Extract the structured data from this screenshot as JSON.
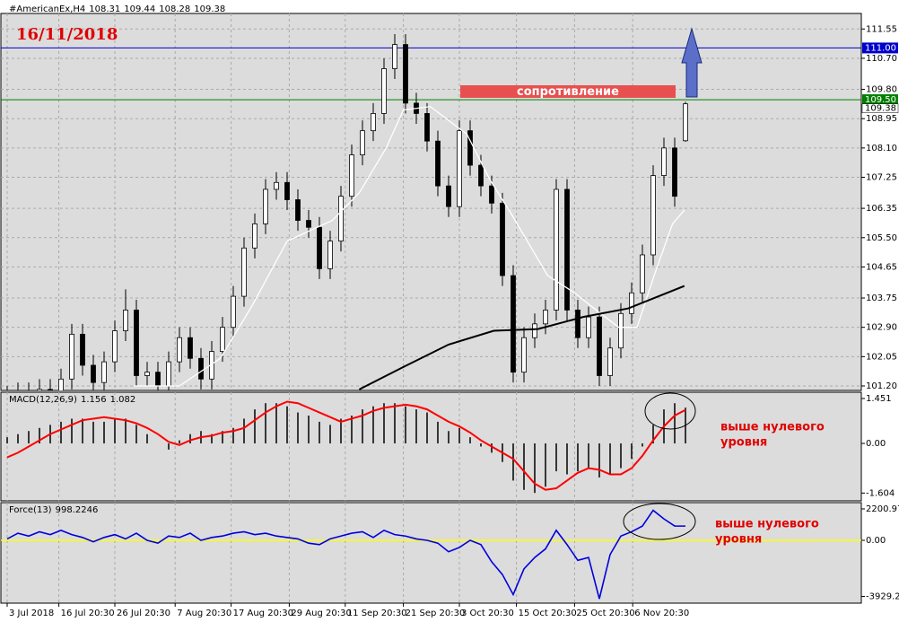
{
  "chart_data": [
    {
      "type": "candlestick",
      "title": "#AmericanEx,H4",
      "date_label": "16/11/2018",
      "annotation": "сопротивление",
      "levels": [
        {
          "value": 111,
          "label": "111.00",
          "color": "#0000cc"
        },
        {
          "value": 109.5,
          "label": "109.50",
          "color": "#008000"
        }
      ],
      "open": [
        100.8,
        100.9,
        101.0,
        100.8,
        101.1,
        101.0,
        101.4,
        102.7,
        101.8,
        101.3,
        101.9,
        102.8,
        103.4,
        101.5,
        101.6,
        101.2,
        101.9,
        102.6,
        102.0,
        101.4,
        102.2,
        102.9,
        103.8,
        105.2,
        105.9,
        106.9,
        107.1,
        106.6,
        106.0,
        105.8,
        104.6,
        105.4,
        106.7,
        107.9,
        108.6,
        109.1,
        110.4,
        111.1,
        109.4,
        109.1,
        108.3,
        107.0,
        106.4,
        108.6,
        107.6,
        107.0,
        106.5,
        104.4,
        101.6,
        102.6,
        103.0,
        103.4,
        106.9,
        103.4,
        102.6,
        103.2,
        101.5,
        102.3,
        103.3,
        103.9,
        105.0,
        107.3,
        108.1,
        108.31
      ],
      "high": [
        101.2,
        101.3,
        101.3,
        101.4,
        101.4,
        101.7,
        103.0,
        103.0,
        102.1,
        102.2,
        103.1,
        104.0,
        103.7,
        101.9,
        101.9,
        102.2,
        102.9,
        102.9,
        102.3,
        102.5,
        103.2,
        104.1,
        105.5,
        106.2,
        107.2,
        107.4,
        107.4,
        106.9,
        106.3,
        106.1,
        105.7,
        107.0,
        108.2,
        108.9,
        109.4,
        110.7,
        111.4,
        111.4,
        109.7,
        109.4,
        108.6,
        107.3,
        108.9,
        108.9,
        107.9,
        107.3,
        106.8,
        104.7,
        102.9,
        103.3,
        103.7,
        107.2,
        107.2,
        103.7,
        103.5,
        103.5,
        102.6,
        103.6,
        104.2,
        105.3,
        107.6,
        108.4,
        108.4,
        109.44
      ],
      "low": [
        100.5,
        100.6,
        100.5,
        100.5,
        100.7,
        100.7,
        101.1,
        101.5,
        101.0,
        101.0,
        101.6,
        102.5,
        101.2,
        101.2,
        100.9,
        100.9,
        101.6,
        101.7,
        101.1,
        101.1,
        101.9,
        102.6,
        103.5,
        104.9,
        105.6,
        106.6,
        106.3,
        105.7,
        105.5,
        104.3,
        104.3,
        105.1,
        106.4,
        107.6,
        108.3,
        108.8,
        110.1,
        109.1,
        108.8,
        108.0,
        106.7,
        106.1,
        106.1,
        107.3,
        106.7,
        106.2,
        104.1,
        101.3,
        101.3,
        102.3,
        102.7,
        103.1,
        103.1,
        102.3,
        102.3,
        101.2,
        101.2,
        102.0,
        103.0,
        103.6,
        104.7,
        107.0,
        106.4,
        108.28
      ],
      "close": [
        100.9,
        101.0,
        100.8,
        101.1,
        101.0,
        101.4,
        102.7,
        101.8,
        101.3,
        101.9,
        102.8,
        103.4,
        101.5,
        101.6,
        101.2,
        101.9,
        102.6,
        102.0,
        101.4,
        102.2,
        102.9,
        103.8,
        105.2,
        105.9,
        106.9,
        107.1,
        106.6,
        106.0,
        105.8,
        104.6,
        105.4,
        106.7,
        107.9,
        108.6,
        109.1,
        110.4,
        111.1,
        109.4,
        109.1,
        108.3,
        107.0,
        106.4,
        108.6,
        107.6,
        107.0,
        106.5,
        104.4,
        101.6,
        102.6,
        103.0,
        103.4,
        106.9,
        103.4,
        102.6,
        103.2,
        101.5,
        102.3,
        103.3,
        103.9,
        105.0,
        107.3,
        108.1,
        106.7,
        109.38
      ],
      "ma": [
        {
          "color": "#ffffff",
          "x": [
            11.8,
            16,
            19.8,
            22.7,
            26,
            30.2,
            32.7,
            35.2,
            36.8,
            39.3,
            42.7,
            44.8,
            46.8,
            48.5,
            50.2,
            52.7,
            54.3,
            56.8,
            58.5,
            60.2,
            61.8,
            62.9
          ],
          "values": [
            101.2,
            101.2,
            102.0,
            103.5,
            105.4,
            106.0,
            106.8,
            108.1,
            109.2,
            109.3,
            108.5,
            107.2,
            106.2,
            105.3,
            104.4,
            103.9,
            103.5,
            102.9,
            102.9,
            104.5,
            105.9,
            106.3
          ]
        },
        {
          "color": "#000000",
          "x": [
            32.7,
            36.8,
            41,
            45.2,
            49.3,
            53.5,
            57.7,
            62.9
          ],
          "values": [
            101.1,
            101.75,
            102.4,
            102.8,
            102.85,
            103.2,
            103.45,
            104.1
          ]
        }
      ],
      "ylim": [
        101.07,
        112.0
      ],
      "yticks": [
        111.55,
        {
          "value": 110.7,
          "label": "110.70"
        },
        {
          "value": 109.8,
          "label": "109.80"
        },
        108.95,
        {
          "value": 108.1,
          "label": "108.10"
        },
        107.25,
        106.35,
        {
          "value": 105.5,
          "label": "105.50"
        },
        104.65,
        103.75,
        {
          "value": 102.9,
          "label": "102.90"
        },
        102.05,
        {
          "value": 101.2,
          "label": "101.20"
        }
      ],
      "xticks": [
        {
          "value": 0,
          "label": "3 Jul 2018"
        },
        {
          "value": 4.8,
          "label": "16 Jul 20:30"
        },
        {
          "value": 10,
          "label": "26 Jul 20:30"
        },
        {
          "value": 15.6,
          "label": "7 Aug 20:30"
        },
        {
          "value": 20.8,
          "label": "17 Aug 20:30"
        },
        {
          "value": 26.2,
          "label": "29 Aug 20:30"
        },
        {
          "value": 31.4,
          "label": "11 Sep 20:30"
        },
        {
          "value": 36.8,
          "label": "21 Sep 20:30"
        },
        {
          "value": 42,
          "label": "3 Oct 20:30"
        },
        {
          "value": 47.3,
          "label": "15 Oct 20:30"
        },
        {
          "value": 52.7,
          "label": "25 Oct 20:30"
        },
        {
          "value": 58.1,
          "label": "6 Nov 20:30"
        }
      ],
      "grid": true
    },
    {
      "type": "macd",
      "title": "MACD(12,26,9)",
      "histogram": [
        0.2,
        0.3,
        0.4,
        0.5,
        0.6,
        0.7,
        0.8,
        0.8,
        0.7,
        0.7,
        0.8,
        0.8,
        0.6,
        0.3,
        0.0,
        -0.2,
        0.1,
        0.3,
        0.4,
        0.3,
        0.4,
        0.5,
        0.8,
        1.1,
        1.3,
        1.3,
        1.2,
        1.0,
        0.9,
        0.7,
        0.6,
        0.8,
        0.9,
        1.1,
        1.2,
        1.3,
        1.3,
        1.2,
        1.1,
        1.0,
        0.7,
        0.4,
        0.5,
        0.2,
        -0.1,
        -0.3,
        -0.6,
        -1.2,
        -1.5,
        -1.6,
        -1.4,
        -0.9,
        -1.0,
        -0.9,
        -0.8,
        -1.1,
        -1.0,
        -0.8,
        -0.5,
        -0.1,
        0.6,
        1.1,
        1.3,
        1.156
      ],
      "signal": [
        -0.45,
        -0.3,
        -0.1,
        0.1,
        0.3,
        0.45,
        0.6,
        0.75,
        0.8,
        0.85,
        0.8,
        0.75,
        0.65,
        0.5,
        0.3,
        0.05,
        -0.05,
        0.1,
        0.2,
        0.25,
        0.35,
        0.4,
        0.5,
        0.75,
        1.0,
        1.2,
        1.35,
        1.3,
        1.15,
        1.0,
        0.85,
        0.7,
        0.8,
        0.9,
        1.05,
        1.15,
        1.2,
        1.25,
        1.2,
        1.1,
        0.9,
        0.7,
        0.55,
        0.35,
        0.1,
        -0.1,
        -0.3,
        -0.5,
        -0.9,
        -1.3,
        -1.5,
        -1.45,
        -1.2,
        -0.95,
        -0.8,
        -0.85,
        -1.0,
        -1.0,
        -0.8,
        -0.4,
        0.1,
        0.55,
        0.9,
        1.082
      ],
      "signal_color": "#ff0000",
      "histogram_color": "#000000",
      "ylim": [
        -1.855,
        1.654
      ],
      "yticks": [
        1.451,
        {
          "value": 0,
          "label": "0.00"
        },
        -1.604
      ],
      "annotation": [
        "выше нулевого",
        "уровня"
      ]
    },
    {
      "type": "line",
      "title": "Force(13)",
      "color": "#0000dd",
      "zero_color": "#ffff00",
      "values": [
        100,
        500,
        300,
        600,
        400,
        700,
        400,
        200,
        -100,
        200,
        400,
        100,
        500,
        0,
        -200,
        300,
        200,
        500,
        0,
        200,
        300,
        500,
        600,
        400,
        500,
        300,
        200,
        100,
        -200,
        -300,
        100,
        300,
        500,
        600,
        200,
        700,
        400,
        300,
        100,
        0,
        -200,
        -800,
        -500,
        0,
        -300,
        -1500,
        -2400,
        -3800,
        -2000,
        -1200,
        -600,
        700,
        -300,
        -1400,
        -1200,
        -4100,
        -1000,
        300,
        600,
        1000,
        2100,
        1500,
        1000,
        998.2246
      ],
      "ylim": [
        -4400,
        2640
      ],
      "yticks": [
        {
          "value": 2200.97,
          "label": "2200.970"
        },
        {
          "value": 0,
          "label": "0.00"
        },
        -3929.251
      ],
      "annotation": [
        "выше нулевого",
        "уровня"
      ]
    }
  ]
}
